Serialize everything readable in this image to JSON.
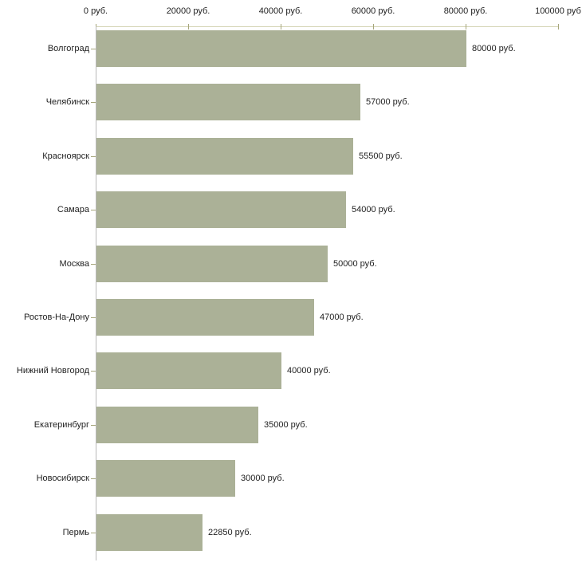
{
  "chart_data": {
    "type": "bar",
    "orientation": "horizontal",
    "title": "",
    "xlabel": "",
    "ylabel": "",
    "xlim": [
      0,
      100000
    ],
    "grid": false,
    "axis_position": "top",
    "x_ticks": [
      0,
      20000,
      40000,
      60000,
      80000,
      100000
    ],
    "x_tick_labels": [
      "0 руб.",
      "20000 руб.",
      "40000 руб.",
      "60000 руб.",
      "80000 руб.",
      "100000 руб"
    ],
    "categories": [
      "Волгоград",
      "Челябинск",
      "Красноярск",
      "Самара",
      "Москва",
      "Ростов-На-Дону",
      "Нижний Новгород",
      "Екатеринбург",
      "Новосибирск",
      "Пермь"
    ],
    "values": [
      80000,
      57000,
      55500,
      54000,
      50000,
      47000,
      40000,
      35000,
      30000,
      22850
    ],
    "value_labels": [
      "80000 руб.",
      "57000 руб.",
      "55500 руб.",
      "54000 руб.",
      "50000 руб.",
      "47000 руб.",
      "40000 руб.",
      "35000 руб.",
      "30000 руб.",
      "22850 руб."
    ],
    "colors": {
      "bar": "#abb197",
      "axis_line": "#d4d4b4",
      "tick": "#a6a67c",
      "category_axis_line": "#b9b9b9",
      "text": "#222222"
    }
  }
}
